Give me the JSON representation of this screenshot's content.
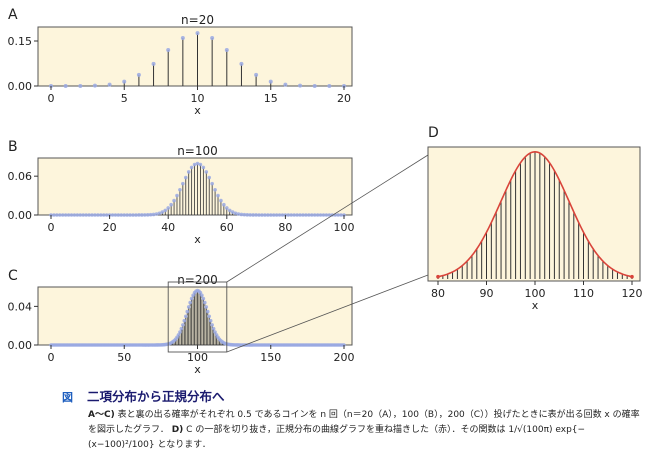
{
  "chart_data": [
    {
      "panel": "A",
      "type": "bar",
      "title": "n=20",
      "n": 20,
      "xlabel": "x",
      "xlim": [
        0,
        20
      ],
      "ylim": [
        0,
        0.19
      ],
      "xticks": [
        "0",
        "5",
        "10",
        "15",
        "20"
      ],
      "yticks": [
        "0.00",
        "0.15"
      ],
      "x": [
        0,
        1,
        2,
        3,
        4,
        5,
        6,
        7,
        8,
        9,
        10,
        11,
        12,
        13,
        14,
        15,
        16,
        17,
        18,
        19,
        20
      ],
      "values": [
        1e-06,
        1.9e-05,
        0.000181,
        0.001087,
        0.004621,
        0.014786,
        0.036964,
        0.073929,
        0.120134,
        0.160179,
        0.176197,
        0.160179,
        0.120134,
        0.073929,
        0.036964,
        0.014786,
        0.004621,
        0.001087,
        0.000181,
        1.9e-05,
        1e-06
      ]
    },
    {
      "panel": "B",
      "type": "bar",
      "title": "n=100",
      "n": 100,
      "xlabel": "x",
      "xlim": [
        0,
        100
      ],
      "ylim": [
        0,
        0.085
      ],
      "xticks": [
        "0",
        "20",
        "40",
        "60",
        "80",
        "100"
      ],
      "yticks": [
        "0.00",
        "0.06"
      ],
      "distribution": "binomial(100, 0.5)"
    },
    {
      "panel": "C",
      "type": "bar",
      "title": "n=200",
      "n": 200,
      "xlabel": "x",
      "xlim": [
        0,
        200
      ],
      "ylim": [
        0,
        0.058
      ],
      "xticks": [
        "0",
        "50",
        "100",
        "150",
        "200"
      ],
      "yticks": [
        "0.00",
        "0.04"
      ],
      "distribution": "binomial(200, 0.5)",
      "zoom_range_x": [
        80,
        120
      ]
    },
    {
      "panel": "D",
      "type": "bar",
      "n": 200,
      "xlabel": "x",
      "xlim": [
        80,
        120
      ],
      "xticks": [
        "80",
        "90",
        "100",
        "110",
        "120"
      ],
      "distribution": "binomial(200, 0.5)",
      "curve": "normal density 1/sqrt(100π)·exp{−(x−100)²/100}"
    }
  ],
  "colors": {
    "panel_bg": "#fdf5dc",
    "stem": "#333333",
    "marker": "#9aa9e3",
    "curve": "#d9443a",
    "zoom_box": "#555555"
  },
  "caption": {
    "tag": "図",
    "title": "二項分布から正規分布へ",
    "line1_bold": "A～C)",
    "line1": "表と裏の出る確率がそれぞれ 0.5 であるコインを n 回（n＝20（A），100（B），200（C））投げたときに表が出る回数 x の確率を図示したグラフ．",
    "line2_bold": "D)",
    "line2": "C の一部を切り抜き，正規分布の曲線グラフを重ね描きした（赤）．その関数は 1/√(100π) exp{−(x−100)²/100} となります．"
  }
}
